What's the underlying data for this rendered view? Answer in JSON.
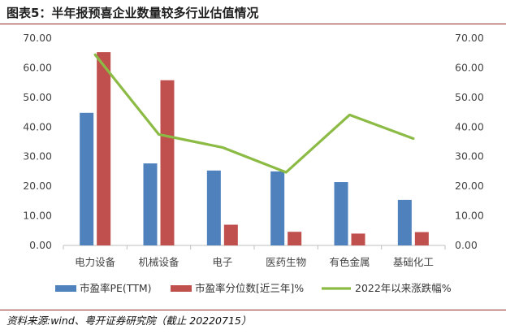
{
  "title": "图表5：半年报预喜企业数量较多行业估值情况",
  "source": "资料来源:wind、粤开证券研究院（截止 20220715）",
  "colors": {
    "pe": "#4f81bd",
    "pct": "#c0504d",
    "line": "#8cbb45",
    "rule": "#9a2a2a"
  },
  "chart_data": {
    "type": "bar",
    "categories": [
      "电力设备",
      "机械设备",
      "电子",
      "医药生物",
      "有色金属",
      "基础化工"
    ],
    "series": [
      {
        "name": "市盈率PE(TTM)",
        "type": "bar",
        "axis": "left",
        "values": [
          44.8,
          27.7,
          25.3,
          25.0,
          21.4,
          15.4
        ]
      },
      {
        "name": "市盈率分位数[近三年]%",
        "type": "bar",
        "axis": "left",
        "values": [
          65.3,
          55.8,
          7.0,
          4.6,
          4.0,
          4.5
        ]
      },
      {
        "name": "2022年以来涨跌幅%",
        "type": "line",
        "axis": "right",
        "values": [
          64.4,
          37.5,
          33.1,
          24.7,
          44.1,
          36.1
        ]
      }
    ],
    "ylim": [
      0,
      70
    ],
    "y2lim": [
      0,
      70
    ],
    "yticks": [
      "0.00",
      "10.00",
      "20.00",
      "30.00",
      "40.00",
      "50.00",
      "60.00",
      "70.00"
    ],
    "y2ticks": [
      "0.00",
      "10.00",
      "20.00",
      "30.00",
      "40.00",
      "50.00",
      "60.00",
      "70.00"
    ],
    "legend": "bottom",
    "grid": false
  }
}
